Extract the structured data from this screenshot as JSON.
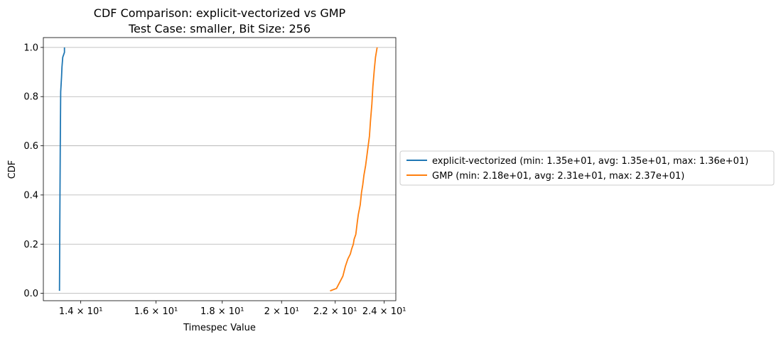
{
  "chart_data": {
    "type": "line",
    "title": "CDF Comparison: explicit-vectorized vs GMP",
    "subtitle": "Test Case: smaller, Bit Size: 256",
    "xlabel": "Timespec Value",
    "ylabel": "CDF",
    "x_scale": "log",
    "xlim": [
      13.1,
      24.5
    ],
    "ylim": [
      -0.03,
      1.04
    ],
    "x_ticks": [
      {
        "value": 14,
        "label": "1.4 × 10¹"
      },
      {
        "value": 16,
        "label": "1.6 × 10¹"
      },
      {
        "value": 18,
        "label": "1.8 × 10¹"
      },
      {
        "value": 20,
        "label": "2 × 10¹"
      },
      {
        "value": 22,
        "label": "2.2 × 10¹"
      },
      {
        "value": 24,
        "label": "2.4 × 10¹"
      }
    ],
    "y_ticks": [
      {
        "value": 0.0,
        "label": "0.0"
      },
      {
        "value": 0.2,
        "label": "0.2"
      },
      {
        "value": 0.4,
        "label": "0.4"
      },
      {
        "value": 0.6,
        "label": "0.6"
      },
      {
        "value": 0.8,
        "label": "0.8"
      },
      {
        "value": 1.0,
        "label": "1.0"
      }
    ],
    "grid": "horizontal",
    "legend_placement": "outside-right",
    "series": [
      {
        "name": "explicit-vectorized (min: 1.35e+01, avg: 1.35e+01, max: 1.36e+01)",
        "color": "#1f77b4",
        "x": [
          13.48,
          13.49,
          13.5,
          13.51,
          13.52,
          13.53,
          13.54,
          13.56,
          13.58,
          13.6,
          13.6
        ],
        "y": [
          0.01,
          0.3,
          0.6,
          0.82,
          0.85,
          0.88,
          0.92,
          0.96,
          0.97,
          0.98,
          1.0
        ]
      },
      {
        "name": "GMP (min: 2.18e+01, avg: 2.31e+01, max: 2.37e+01)",
        "color": "#ff7f0e",
        "x": [
          21.8,
          22.05,
          22.2,
          22.3,
          22.4,
          22.5,
          22.6,
          22.65,
          22.72,
          22.75,
          22.82,
          22.88,
          22.92,
          23.0,
          23.05,
          23.1,
          23.15,
          23.22,
          23.3,
          23.38,
          23.42,
          23.48,
          23.52,
          23.58,
          23.63,
          23.7
        ],
        "y": [
          0.01,
          0.02,
          0.05,
          0.07,
          0.11,
          0.14,
          0.16,
          0.18,
          0.2,
          0.22,
          0.24,
          0.29,
          0.32,
          0.36,
          0.41,
          0.44,
          0.48,
          0.52,
          0.58,
          0.64,
          0.7,
          0.77,
          0.84,
          0.91,
          0.96,
          1.0
        ]
      }
    ]
  }
}
